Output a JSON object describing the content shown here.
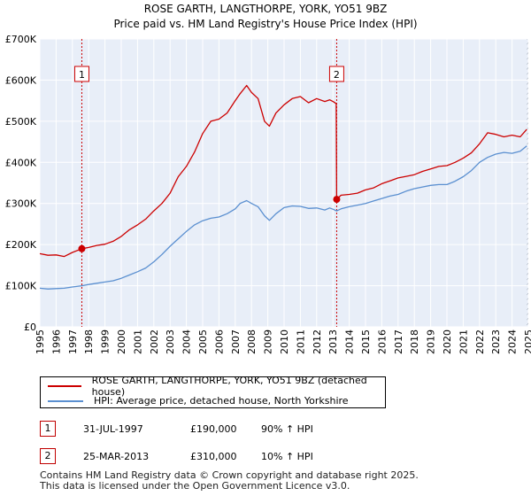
{
  "chart_data": {
    "type": "line",
    "title": "ROSE GARTH, LANGTHORPE, YORK, YO51 9BZ",
    "subtitle": "Price paid vs. HM Land Registry's House Price Index (HPI)",
    "xlabel": "",
    "ylabel": "",
    "xlim": [
      1995,
      2025.0
    ],
    "ylim": [
      0,
      700000
    ],
    "x_ticks": [
      "1995",
      "1996",
      "1997",
      "1998",
      "1999",
      "2000",
      "2001",
      "2002",
      "2003",
      "2004",
      "2005",
      "2006",
      "2007",
      "2008",
      "2009",
      "2010",
      "2011",
      "2012",
      "2013",
      "2014",
      "2015",
      "2016",
      "2017",
      "2018",
      "2019",
      "2020",
      "2021",
      "2022",
      "2023",
      "2024",
      "2025"
    ],
    "y_ticks": [
      {
        "value": 0,
        "label": "£0"
      },
      {
        "value": 100000,
        "label": "£100K"
      },
      {
        "value": 200000,
        "label": "£200K"
      },
      {
        "value": 300000,
        "label": "£300K"
      },
      {
        "value": 400000,
        "label": "£400K"
      },
      {
        "value": 500000,
        "label": "£500K"
      },
      {
        "value": 600000,
        "label": "£600K"
      },
      {
        "value": 700000,
        "label": "£700K"
      }
    ],
    "grid": true,
    "shaded_region_after": 2024.9,
    "series": [
      {
        "name": "ROSE GARTH, LANGTHORPE, YORK, YO51 9BZ (detached house)",
        "color": "#cc0000",
        "x": [
          1995.0,
          1995.5,
          1996.0,
          1996.5,
          1997.0,
          1997.58,
          1998.0,
          1998.5,
          1999.0,
          1999.5,
          2000.0,
          2000.5,
          2001.0,
          2001.5,
          2002.0,
          2002.5,
          2003.0,
          2003.5,
          2004.0,
          2004.5,
          2005.0,
          2005.5,
          2006.0,
          2006.5,
          2007.0,
          2007.3,
          2007.7,
          2008.0,
          2008.4,
          2008.8,
          2009.1,
          2009.5,
          2010.0,
          2010.5,
          2011.0,
          2011.5,
          2012.0,
          2012.5,
          2012.8,
          2013.0,
          2013.2,
          2013.23,
          2013.5,
          2014.0,
          2014.5,
          2015.0,
          2015.5,
          2016.0,
          2016.5,
          2017.0,
          2017.5,
          2018.0,
          2018.5,
          2019.0,
          2019.5,
          2020.0,
          2020.5,
          2021.0,
          2021.5,
          2022.0,
          2022.5,
          2023.0,
          2023.5,
          2024.0,
          2024.5,
          2024.9
        ],
        "y": [
          178000,
          174000,
          175000,
          171000,
          181000,
          190000,
          193000,
          198000,
          201000,
          208000,
          220000,
          236000,
          248000,
          262000,
          282000,
          300000,
          325000,
          365000,
          390000,
          425000,
          470000,
          500000,
          505000,
          520000,
          550000,
          567000,
          587000,
          570000,
          555000,
          500000,
          488000,
          520000,
          540000,
          555000,
          560000,
          545000,
          555000,
          548000,
          552000,
          548000,
          543000,
          310000,
          320000,
          322000,
          325000,
          333000,
          338000,
          348000,
          355000,
          362000,
          366000,
          370000,
          378000,
          384000,
          390000,
          392000,
          400000,
          410000,
          423000,
          445000,
          472000,
          468000,
          462000,
          466000,
          462000,
          480000
        ]
      },
      {
        "name": "HPI: Average price, detached house, North Yorkshire",
        "color": "#5a8fd0",
        "x": [
          1995.0,
          1995.5,
          1996.0,
          1996.5,
          1997.0,
          1997.58,
          1998.0,
          1998.5,
          1999.0,
          1999.5,
          2000.0,
          2000.5,
          2001.0,
          2001.5,
          2002.0,
          2002.5,
          2003.0,
          2003.5,
          2004.0,
          2004.5,
          2005.0,
          2005.5,
          2006.0,
          2006.5,
          2007.0,
          2007.3,
          2007.7,
          2008.0,
          2008.4,
          2008.8,
          2009.1,
          2009.5,
          2010.0,
          2010.5,
          2011.0,
          2011.5,
          2012.0,
          2012.5,
          2012.8,
          2013.0,
          2013.23,
          2013.5,
          2014.0,
          2014.5,
          2015.0,
          2015.5,
          2016.0,
          2016.5,
          2017.0,
          2017.5,
          2018.0,
          2018.5,
          2019.0,
          2019.5,
          2020.0,
          2020.5,
          2021.0,
          2021.5,
          2022.0,
          2022.5,
          2023.0,
          2023.5,
          2024.0,
          2024.5,
          2024.9
        ],
        "y": [
          94000,
          92000,
          93000,
          94000,
          97000,
          100000,
          103000,
          106000,
          109000,
          112000,
          118000,
          126000,
          134000,
          143000,
          158000,
          176000,
          196000,
          214000,
          232000,
          248000,
          258000,
          264000,
          267000,
          275000,
          287000,
          300000,
          307000,
          300000,
          292000,
          270000,
          259000,
          275000,
          290000,
          294000,
          293000,
          288000,
          289000,
          284000,
          289000,
          286000,
          282000,
          287000,
          292000,
          296000,
          300000,
          306000,
          312000,
          318000,
          322000,
          330000,
          336000,
          340000,
          344000,
          346000,
          346000,
          354000,
          365000,
          380000,
          400000,
          412000,
          420000,
          424000,
          422000,
          427000,
          440000
        ]
      }
    ],
    "annotations": [
      {
        "label": "1",
        "x": 1997.58
      },
      {
        "label": "2",
        "x": 2013.23
      }
    ],
    "sale_points": [
      {
        "x": 1997.58,
        "y": 190000
      },
      {
        "x": 2013.23,
        "y": 310000
      }
    ]
  },
  "legend": {
    "property_label": "ROSE GARTH, LANGTHORPE, YORK, YO51 9BZ (detached house)",
    "hpi_label": "HPI: Average price, detached house, North Yorkshire",
    "property_color": "#cc0000",
    "hpi_color": "#5a8fd0"
  },
  "sales": [
    {
      "marker": "1",
      "date": "31-JUL-1997",
      "price": "£190,000",
      "hpi": "90% ↑ HPI"
    },
    {
      "marker": "2",
      "date": "25-MAR-2013",
      "price": "£310,000",
      "hpi": "10% ↑ HPI"
    }
  ],
  "footer": {
    "line1": "Contains HM Land Registry data © Crown copyright and database right 2025.",
    "line2": "This data is licensed under the Open Government Licence v3.0."
  }
}
